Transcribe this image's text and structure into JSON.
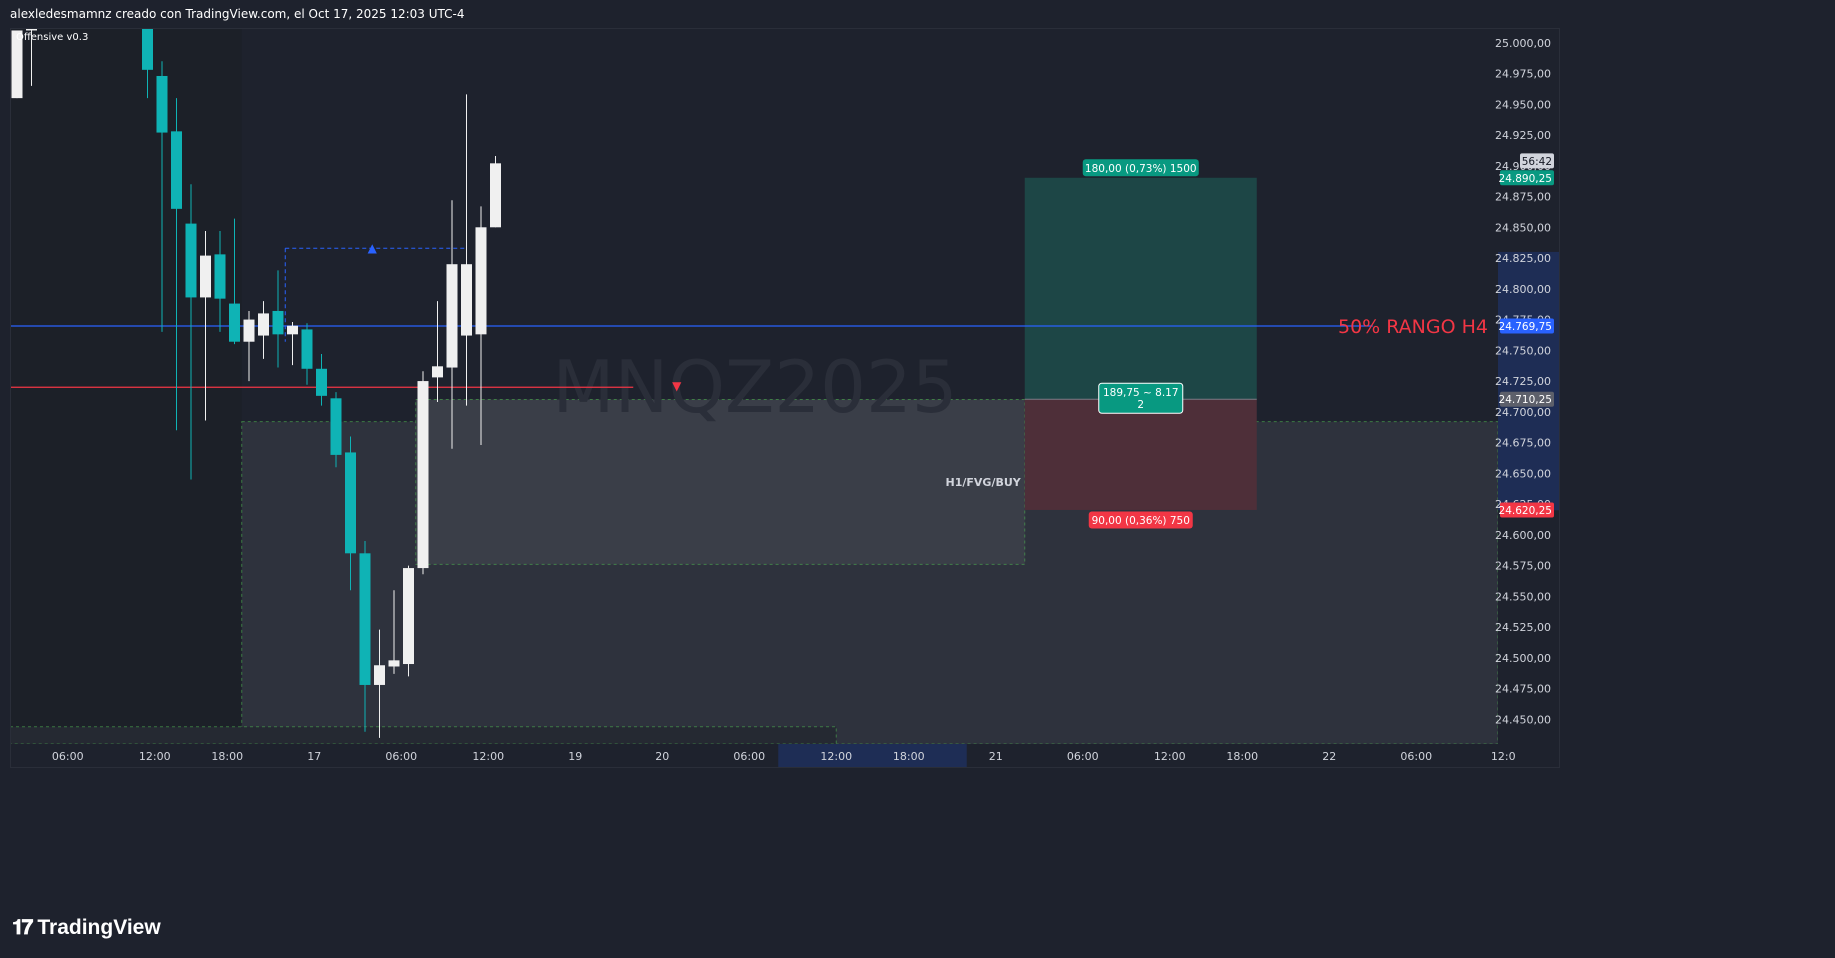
{
  "header": {
    "title": "alexledesmamnz creado con TradingView.com, el Oct 17, 2025 12:03 UTC-4"
  },
  "footer": {
    "brand": "TradingView"
  },
  "indicator_label": "Offensive v0.3",
  "watermark": "MNQZ2025",
  "colors": {
    "background": "#1e222d",
    "up_candle": "#f0f0f0",
    "down_candle": "#0fb3b5",
    "blue_line": "#2962ff",
    "red_line": "#f23645",
    "profit_zone": "#1b4a4a",
    "loss_zone": "#5a2f3a",
    "fvg_zone": "#434651",
    "green_label": "#089981",
    "red_label": "#f23645"
  },
  "chart_data": {
    "type": "candlestick",
    "symbol": "MNQZ2025",
    "ylim": [
      24430,
      25012
    ],
    "y_ticks": [
      25000,
      24975,
      24950,
      24925,
      24900,
      24875,
      24850,
      24825,
      24800,
      24775,
      24750,
      24725,
      24700,
      24675,
      24650,
      24625,
      24600,
      24575,
      24550,
      24525,
      24500,
      24475,
      24450
    ],
    "y_tick_labels": [
      "25.000,00",
      "24.975,00",
      "24.950,00",
      "24.925,00",
      "24.900,00",
      "24.875,00",
      "24.850,00",
      "24.825,00",
      "24.800,00",
      "24.775,00",
      "24.750,00",
      "24.725,00",
      "24.700,00",
      "24.675,00",
      "24.650,00",
      "24.625,00",
      "24.600,00",
      "24.575,00",
      "24.550,00",
      "24.525,00",
      "24.500,00",
      "24.475,00",
      "24.450,00"
    ],
    "x_ticks": [
      {
        "bar": 3.5,
        "label": "06:00"
      },
      {
        "bar": 9.5,
        "label": "12:00"
      },
      {
        "bar": 14.5,
        "label": "18:00"
      },
      {
        "bar": 20.5,
        "label": "17"
      },
      {
        "bar": 26.5,
        "label": "06:00"
      },
      {
        "bar": 32.5,
        "label": "12:00"
      },
      {
        "bar": 38.5,
        "label": "19"
      },
      {
        "bar": 44.5,
        "label": "20"
      },
      {
        "bar": 50.5,
        "label": "06:00"
      },
      {
        "bar": 56.5,
        "label": "12:00"
      },
      {
        "bar": 61.5,
        "label": "18:00"
      },
      {
        "bar": 67.5,
        "label": "21"
      },
      {
        "bar": 73.5,
        "label": "06:00"
      },
      {
        "bar": 79.5,
        "label": "12:00"
      },
      {
        "bar": 84.5,
        "label": "18:00"
      },
      {
        "bar": 90.5,
        "label": "22"
      },
      {
        "bar": 96.5,
        "label": "06:00"
      },
      {
        "bar": 102.5,
        "label": "12:0"
      }
    ],
    "x_highlight": {
      "from_bar": 52.5,
      "to_bar": 65.5
    },
    "candles": [
      {
        "i": 0,
        "o": 24955,
        "h": 25010,
        "l": 24955,
        "c": 25010
      },
      {
        "i": 1,
        "o": 25010,
        "h": 25012,
        "l": 24965,
        "c": 25012
      },
      {
        "i": 9,
        "o": 25012,
        "h": 25012,
        "l": 24955,
        "c": 24978
      },
      {
        "i": 10,
        "o": 24973,
        "h": 24985,
        "l": 24765,
        "c": 24927
      },
      {
        "i": 11,
        "o": 24928,
        "h": 24955,
        "l": 24685,
        "c": 24865
      },
      {
        "i": 12,
        "o": 24853,
        "h": 24885,
        "l": 24645,
        "c": 24793
      },
      {
        "i": 13,
        "o": 24793,
        "h": 24847,
        "l": 24693,
        "c": 24827
      },
      {
        "i": 14,
        "o": 24828,
        "h": 24847,
        "l": 24765,
        "c": 24792
      },
      {
        "i": 15,
        "o": 24788,
        "h": 24857,
        "l": 24755,
        "c": 24757
      },
      {
        "i": 16,
        "o": 24757,
        "h": 24782,
        "l": 24725,
        "c": 24775
      },
      {
        "i": 17,
        "o": 24762,
        "h": 24790,
        "l": 24743,
        "c": 24780
      },
      {
        "i": 18,
        "o": 24782,
        "h": 24815,
        "l": 24736,
        "c": 24763
      },
      {
        "i": 19,
        "o": 24763,
        "h": 24773,
        "l": 24738,
        "c": 24770
      },
      {
        "i": 20,
        "o": 24767,
        "h": 24772,
        "l": 24722,
        "c": 24735
      },
      {
        "i": 21,
        "o": 24735,
        "h": 24747,
        "l": 24705,
        "c": 24713
      },
      {
        "i": 22,
        "o": 24711,
        "h": 24716,
        "l": 24655,
        "c": 24665
      },
      {
        "i": 23,
        "o": 24667,
        "h": 24680,
        "l": 24555,
        "c": 24585
      },
      {
        "i": 24,
        "o": 24585,
        "h": 24595,
        "l": 24440,
        "c": 24478
      },
      {
        "i": 25,
        "o": 24478,
        "h": 24523,
        "l": 24435,
        "c": 24494
      },
      {
        "i": 26,
        "o": 24493,
        "h": 24555,
        "l": 24487,
        "c": 24498
      },
      {
        "i": 27,
        "o": 24495,
        "h": 24575,
        "l": 24485,
        "c": 24573
      },
      {
        "i": 28,
        "o": 24573,
        "h": 24733,
        "l": 24568,
        "c": 24725
      },
      {
        "i": 29,
        "o": 24728,
        "h": 24790,
        "l": 24708,
        "c": 24737
      },
      {
        "i": 30,
        "o": 24736,
        "h": 24872,
        "l": 24670,
        "c": 24820
      },
      {
        "i": 31,
        "o": 24762,
        "h": 24958,
        "l": 24705,
        "c": 24820
      },
      {
        "i": 32,
        "o": 24763,
        "h": 24867,
        "l": 24673,
        "c": 24850
      },
      {
        "i": 33,
        "o": 24850,
        "h": 24908,
        "l": 24850,
        "c": 24902
      }
    ],
    "horizontal_lines": [
      {
        "price": 24769.75,
        "color": "#2962ff",
        "from_bar": -0.5,
        "to_bar": 93.5,
        "label": "50% RANGO H4"
      },
      {
        "price": 24720,
        "color": "#f23645",
        "from_bar": -0.5,
        "to_bar": 42.5
      }
    ],
    "zones": [
      {
        "name": "fvg-large",
        "from_bar": 15.5,
        "to_bar": 103.5,
        "top": 24692,
        "bottom": 24400,
        "color": "#2e323d"
      },
      {
        "name": "fvg-h1",
        "from_bar": 27.5,
        "to_bar": 69.5,
        "top": 24710,
        "bottom": 24576,
        "color": "#3a3e48",
        "label": "H1/FVG/BUY"
      },
      {
        "name": "profit",
        "from_bar": 69.5,
        "to_bar": 85.5,
        "top": 24890.25,
        "bottom": 24710.25,
        "color": "#1d4646"
      },
      {
        "name": "loss",
        "from_bar": 69.5,
        "to_bar": 85.5,
        "top": 24710.25,
        "bottom": 24620.25,
        "color": "#4e2f39"
      },
      {
        "name": "bottom-dashed",
        "from_bar": -0.5,
        "to_bar": 56.5,
        "top": 24444,
        "bottom": 24400,
        "color": "#252932"
      }
    ],
    "dashed_level": {
      "price": 24833,
      "from_bar": 18.5,
      "to_bar": 31
    },
    "position": {
      "target_label": "180,00 (0,73%) 1500",
      "stop_label": "90,00 (0,36%) 750",
      "entry_label_line1": "189,75 ~ 8.17",
      "entry_label_line2": "2"
    },
    "price_badges": [
      {
        "price": 24904,
        "text": "56:42",
        "bg": "#d1d4dc",
        "fg": "#131722"
      },
      {
        "price": 24890.25,
        "text": "24.890,25",
        "bg": "#089981",
        "fg": "#ffffff"
      },
      {
        "price": 24769.75,
        "text": "24.769,75",
        "bg": "#2962ff",
        "fg": "#ffffff"
      },
      {
        "price": 24710.25,
        "text": "24.710,25",
        "bg": "#5d606b",
        "fg": "#ffffff"
      },
      {
        "price": 24620.25,
        "text": "24.620,25",
        "bg": "#f23645",
        "fg": "#ffffff"
      }
    ],
    "axis_highlight": {
      "top": 24830,
      "bottom": 24620
    }
  }
}
